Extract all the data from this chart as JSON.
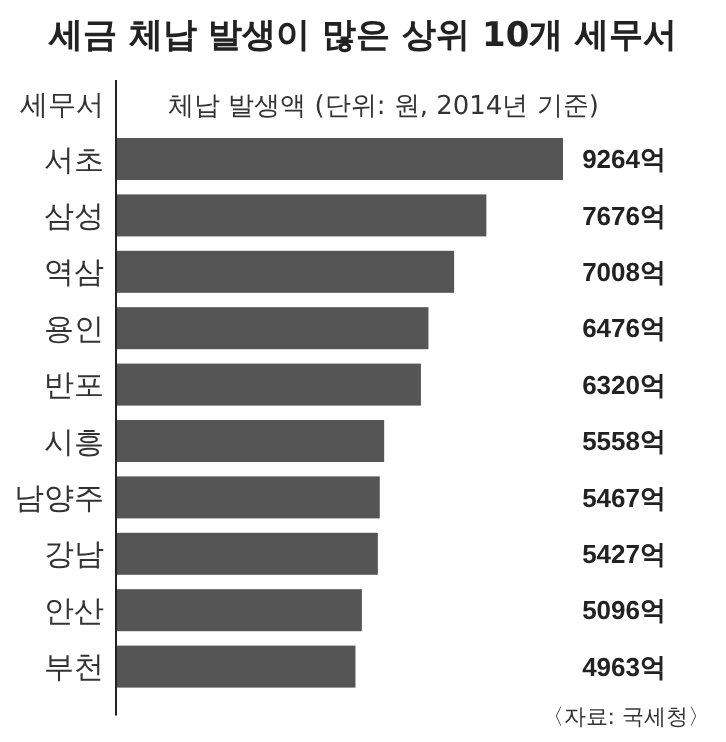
{
  "chart_data": {
    "type": "bar",
    "orientation": "horizontal",
    "title": "세금 체납 발생이 많은 상위 10개 세무서",
    "ylabel": "세무서",
    "xlabel": "체납 발생액 (단위: 원, 2014년 기준)",
    "categories": [
      "서초",
      "삼성",
      "역삼",
      "용인",
      "반포",
      "시흥",
      "남양주",
      "강남",
      "안산",
      "부천"
    ],
    "values": [
      9264,
      7676,
      7008,
      6476,
      6320,
      5558,
      5467,
      5427,
      5096,
      4963
    ],
    "value_labels": [
      "9264억",
      "7676억",
      "7008억",
      "6476억",
      "6320억",
      "5558억",
      "5467억",
      "5427억",
      "5096억",
      "4963억"
    ],
    "color": "#555555",
    "annotations": [
      "〈자료: 국세청〉"
    ]
  }
}
